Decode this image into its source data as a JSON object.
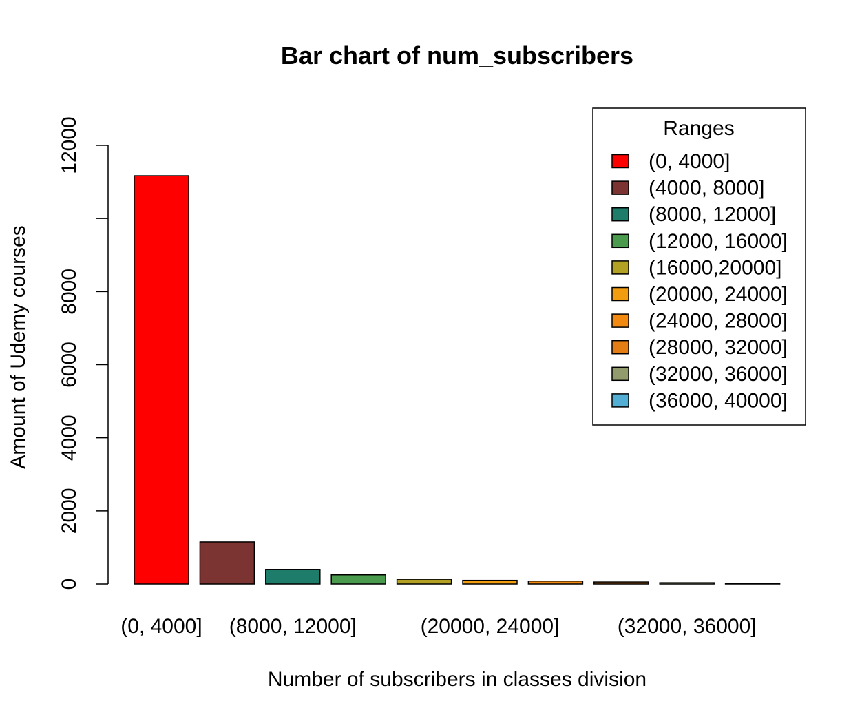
{
  "chart_data": {
    "type": "bar",
    "title": "Bar chart of num_subscribers",
    "xlabel": "Number of subscribers in classes division",
    "ylabel": "Amount of Udemy courses",
    "ylim": [
      0,
      12000
    ],
    "yticks": [
      0,
      2000,
      4000,
      6000,
      8000,
      12000
    ],
    "categories": [
      "(0, 4000]",
      "(4000, 8000]",
      "(8000, 12000]",
      "(12000, 16000]",
      "(16000,20000]",
      "(20000, 24000]",
      "(24000, 28000]",
      "(28000, 32000]",
      "(32000, 36000]",
      "(36000, 40000]"
    ],
    "x_tick_labels_shown": [
      "(0, 4000]",
      "(8000, 12000]",
      "(20000, 24000]",
      "(32000, 36000]"
    ],
    "values": [
      11170,
      1150,
      400,
      250,
      130,
      100,
      80,
      55,
      35,
      20
    ],
    "colors": [
      "#fe0000",
      "#7c3432",
      "#1e7d6a",
      "#4a9b4d",
      "#b3a123",
      "#f29c10",
      "#f28a11",
      "#e57d15",
      "#919b6c",
      "#53aed3"
    ],
    "legend": {
      "title": "Ranges",
      "placement": "top-right",
      "entries": [
        "(0, 4000]",
        "(4000, 8000]",
        "(8000, 12000]",
        "(12000, 16000]",
        "(16000,20000]",
        "(20000, 24000]",
        "(24000, 28000]",
        "(28000, 32000]",
        "(32000, 36000]",
        "(36000, 40000]"
      ]
    },
    "grid": false
  }
}
